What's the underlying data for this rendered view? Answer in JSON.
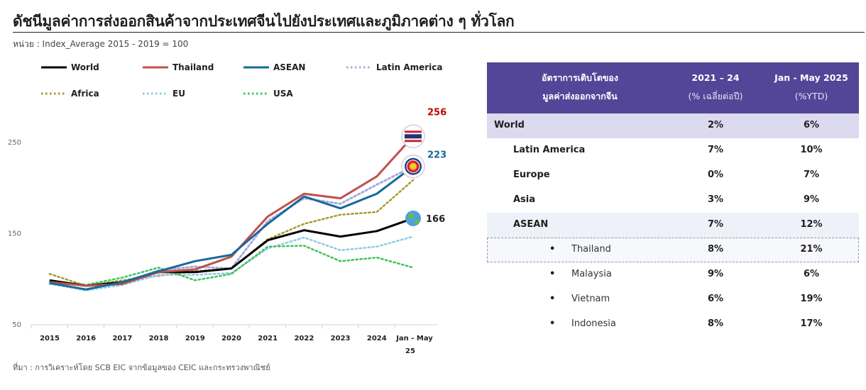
{
  "page": {
    "title": "ดัชนีมูลค่าการส่งออกสินค้าจากประเทศจีนไปยังประเทศและภูมิภาคต่าง ๆ ทั่วโลก",
    "unit": "หน่วย : Index_Average  2015 - 2019 = 100",
    "source": "ที่มา : การวิเคราะห์โดย SCB EIC จากข้อมูลของ CEIC และกระทรวงพาณิชย์"
  },
  "legend": [
    {
      "name": "World",
      "color": "#000000",
      "style": "solid"
    },
    {
      "name": "Thailand",
      "color": "#c0504d",
      "style": "solid"
    },
    {
      "name": "ASEAN",
      "color": "#17699a",
      "style": "solid"
    },
    {
      "name": "Latin America",
      "color": "#a9a9d9",
      "style": "dotted"
    },
    {
      "name": "Africa",
      "color": "#a59a2b",
      "style": "dotted"
    },
    {
      "name": "EU",
      "color": "#8fc9e6",
      "style": "dotted"
    },
    {
      "name": "USA",
      "color": "#3ec45a",
      "style": "dotted"
    }
  ],
  "chart_data": {
    "type": "line",
    "x": [
      "2015",
      "2016",
      "2017",
      "2018",
      "2019",
      "2020",
      "2021",
      "2022",
      "2023",
      "2024",
      "Jan - May 25"
    ],
    "ylim": [
      50,
      280
    ],
    "yticks": [
      50,
      150,
      250
    ],
    "grid": false,
    "legend_position": "top",
    "series": [
      {
        "name": "World",
        "color": "#000000",
        "dash": "solid",
        "width": 3,
        "values": [
          98,
          92,
          96,
          107,
          107,
          111,
          142,
          153,
          146,
          152,
          166
        ]
      },
      {
        "name": "Thailand",
        "color": "#c0504d",
        "dash": "solid",
        "width": 3,
        "values": [
          96,
          92,
          94,
          107,
          110,
          124,
          168,
          193,
          188,
          212,
          256
        ]
      },
      {
        "name": "ASEAN",
        "color": "#17699a",
        "dash": "solid",
        "width": 3,
        "values": [
          95,
          88,
          96,
          108,
          119,
          126,
          160,
          190,
          177,
          193,
          223
        ]
      },
      {
        "name": "Latin America",
        "color": "#a9a9d9",
        "dash": "dotted",
        "width": 3,
        "values": [
          95,
          87,
          95,
          109,
          113,
          111,
          163,
          188,
          182,
          203,
          223
        ]
      },
      {
        "name": "Africa",
        "color": "#a59a2b",
        "dash": "dotted",
        "width": 2.5,
        "values": [
          105,
          92,
          98,
          103,
          108,
          111,
          143,
          160,
          170,
          173,
          208
        ]
      },
      {
        "name": "EU",
        "color": "#8fc9e6",
        "dash": "dotted",
        "width": 2.5,
        "values": [
          94,
          87,
          93,
          104,
          104,
          106,
          133,
          145,
          131,
          135,
          146
        ]
      },
      {
        "name": "USA",
        "color": "#3ec45a",
        "dash": "dotted",
        "width": 2.5,
        "values": [
          97,
          93,
          101,
          112,
          98,
          105,
          135,
          136,
          119,
          123,
          112
        ]
      }
    ],
    "annotations": [
      {
        "text": "256",
        "series": "Thailand",
        "color": "#c00000"
      },
      {
        "text": "223",
        "series": "ASEAN",
        "color": "#17699a"
      },
      {
        "text": "166",
        "series": "World",
        "color": "#1f1f1f"
      }
    ]
  },
  "table": {
    "header": {
      "col1_line1": "อัตราการเติบโตของ",
      "col1_line2": "มูลค่าส่งออกจากจีน",
      "col2_line1": "2021 – 24",
      "col2_line2": "(% เฉลี่ยต่อปี)",
      "col3_line1": "Jan - May 2025",
      "col3_line2": "(%YTD)"
    },
    "rows": [
      {
        "label": "World",
        "v1": "2%",
        "v2": "6%",
        "level": "top"
      },
      {
        "label": "Latin America",
        "v1": "7%",
        "v2": "10%",
        "level": "region"
      },
      {
        "label": "Europe",
        "v1": "0%",
        "v2": "7%",
        "level": "region"
      },
      {
        "label": "Asia",
        "v1": "3%",
        "v2": "9%",
        "level": "region"
      },
      {
        "label": "ASEAN",
        "v1": "7%",
        "v2": "12%",
        "level": "asean"
      },
      {
        "label": "Thailand",
        "v1": "8%",
        "v2": "21%",
        "level": "sub",
        "highlight": true
      },
      {
        "label": "Malaysia",
        "v1": "9%",
        "v2": "6%",
        "level": "sub"
      },
      {
        "label": "Vietnam",
        "v1": "6%",
        "v2": "19%",
        "level": "sub"
      },
      {
        "label": "Indonesia",
        "v1": "8%",
        "v2": "17%",
        "level": "sub"
      }
    ],
    "bullet": "•"
  }
}
